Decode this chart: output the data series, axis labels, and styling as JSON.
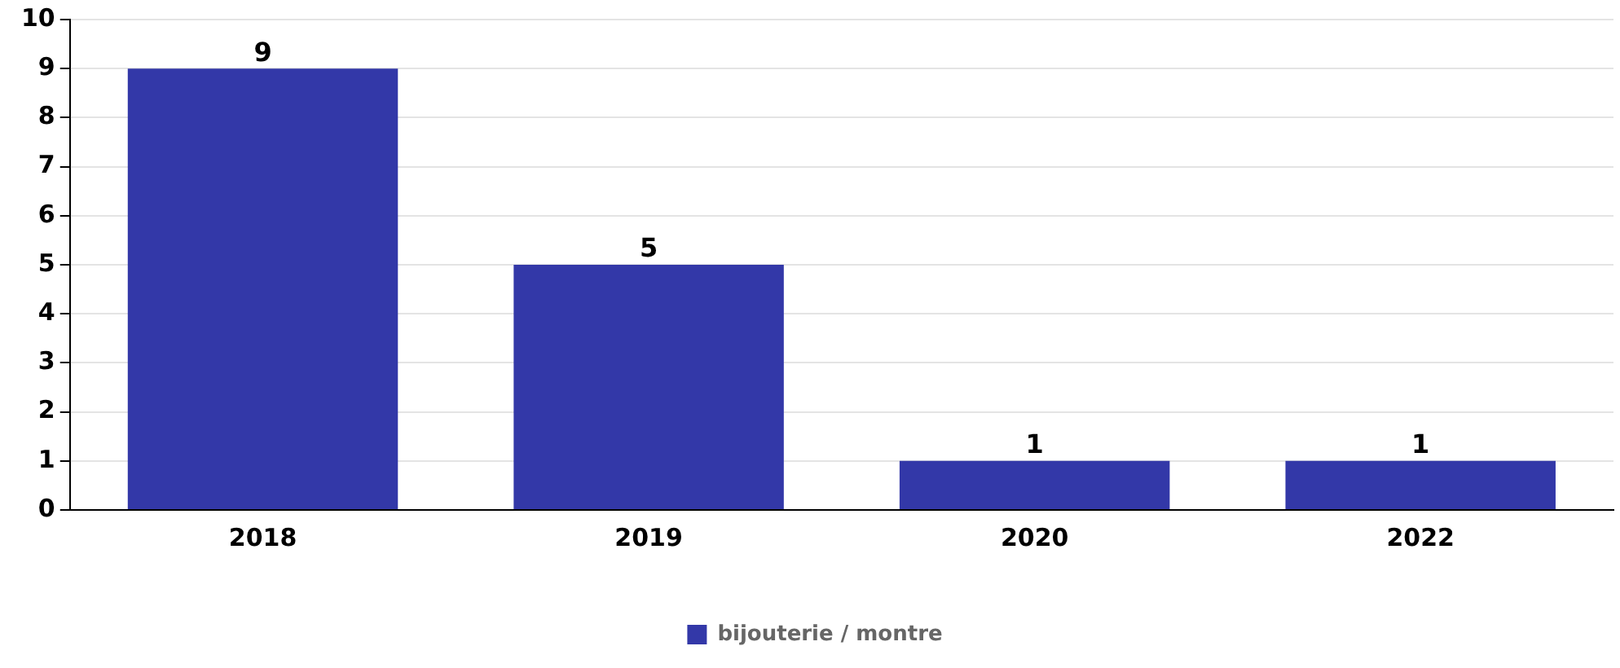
{
  "chart_data": {
    "type": "bar",
    "categories": [
      "2018",
      "2019",
      "2020",
      "2022"
    ],
    "series": [
      {
        "name": "bijouterie / montre",
        "color": "#3338a8",
        "values": [
          9,
          5,
          1,
          1
        ]
      }
    ],
    "ylim": [
      0,
      10
    ],
    "yticks": [
      0,
      1,
      2,
      3,
      4,
      5,
      6,
      7,
      8,
      9,
      10
    ],
    "grid": "y",
    "legend": "bottom",
    "data_labels": true
  }
}
